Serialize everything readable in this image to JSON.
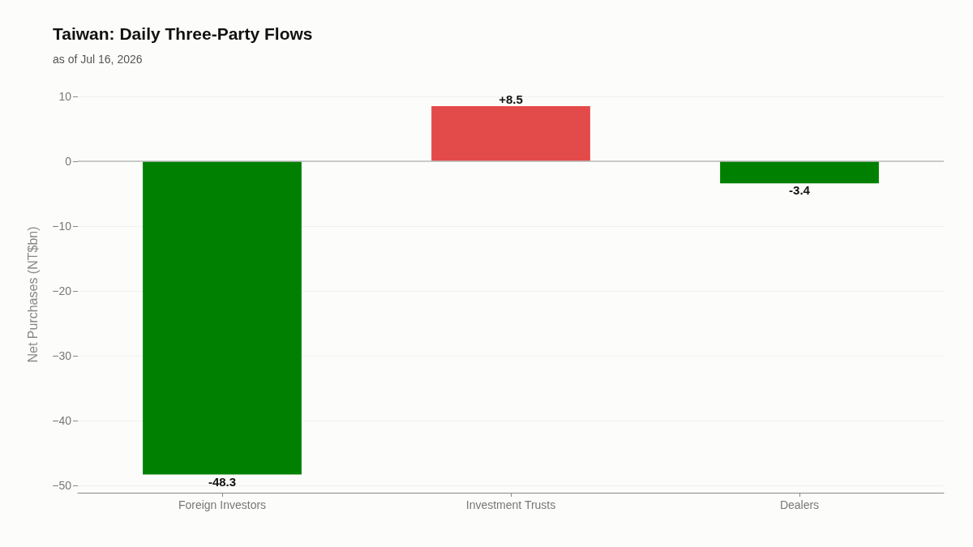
{
  "chart_data": {
    "type": "bar",
    "title": "Taiwan: Daily Three-Party Flows",
    "subtitle": "as of Jul 16, 2026",
    "ylabel": "Net Purchases (NT$bn)",
    "categories": [
      "Foreign Investors",
      "Investment Trusts",
      "Dealers"
    ],
    "values": [
      -48.3,
      8.5,
      -3.4
    ],
    "colors": [
      "#008000",
      "#e34a4a",
      "#008000"
    ],
    "value_labels": [
      "-48.3",
      "+8.5",
      "-3.4"
    ],
    "ylim": [
      -51.1,
      10
    ],
    "yticks": [
      {
        "value": -50,
        "label": "−50"
      },
      {
        "value": -40,
        "label": "−40"
      },
      {
        "value": -30,
        "label": "−30"
      },
      {
        "value": -20,
        "label": "−20"
      },
      {
        "value": -10,
        "label": "−10"
      },
      0,
      10
    ],
    "ref_lines": [
      {
        "axis": "y",
        "value": 0,
        "color": "#bbbbbb"
      }
    ],
    "grid": "y"
  }
}
